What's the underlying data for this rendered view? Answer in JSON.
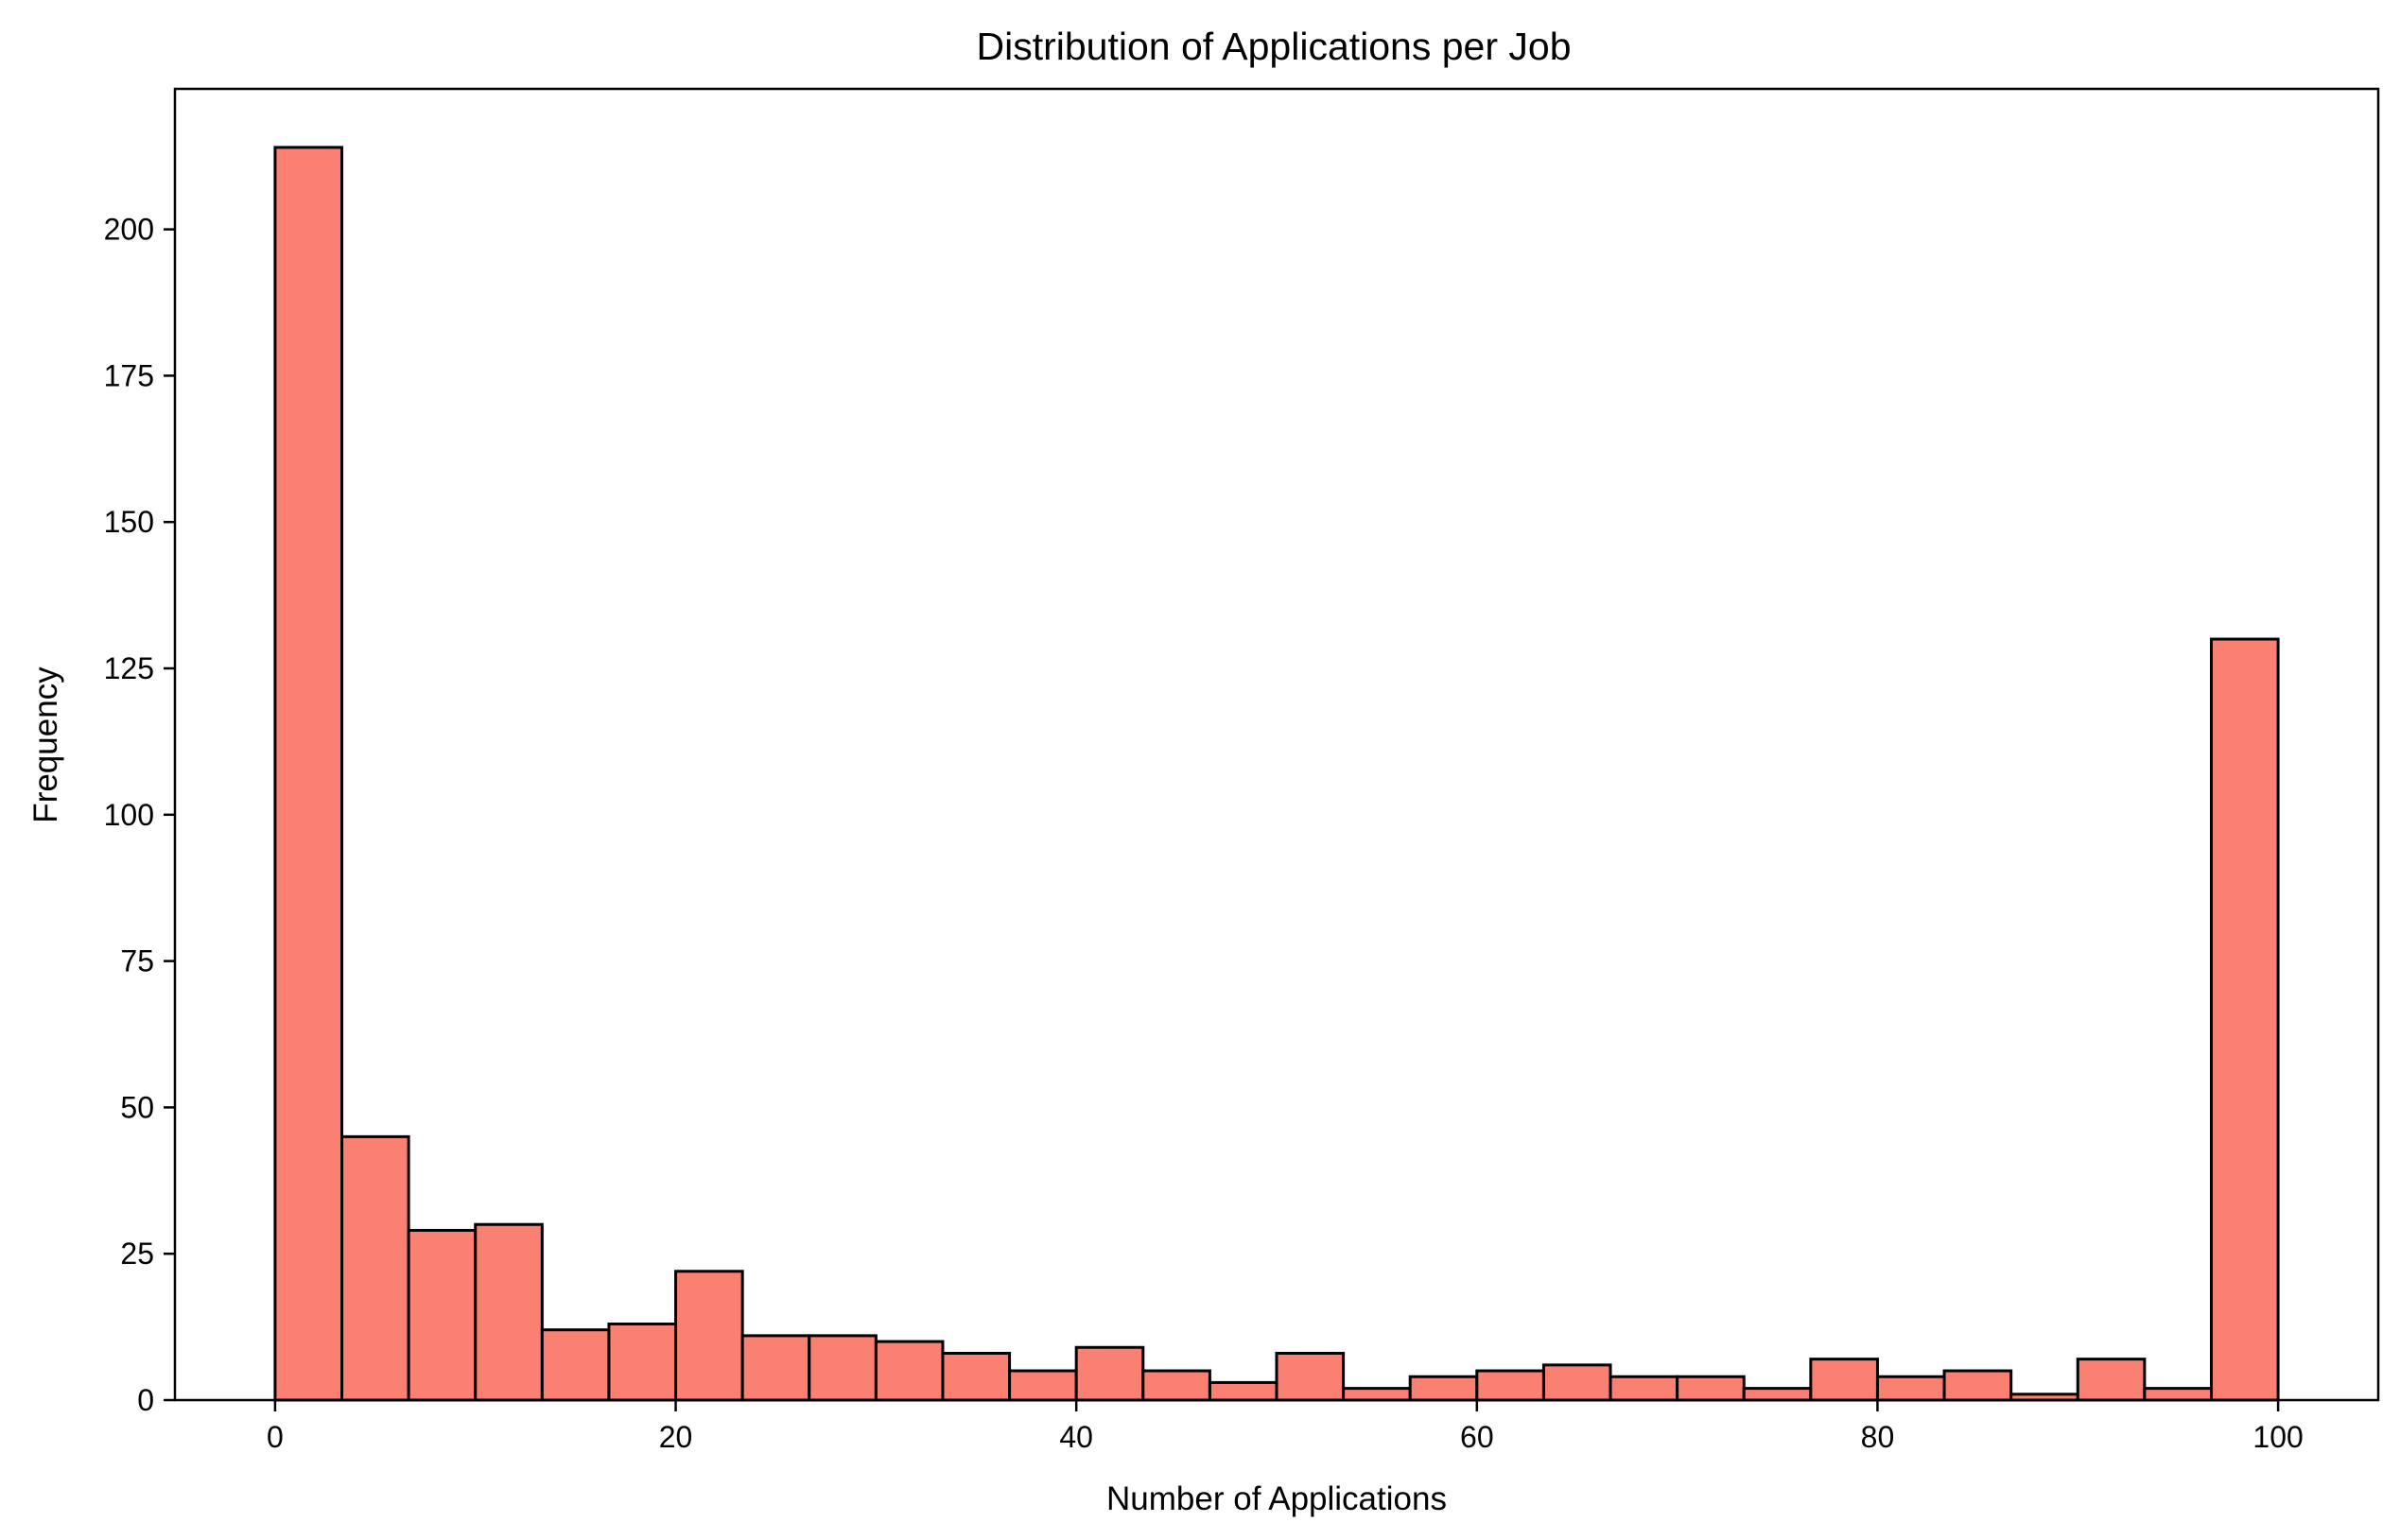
{
  "chart_data": {
    "type": "bar",
    "title": "Distribution of Applications per Job",
    "xlabel": "Number of Applications",
    "ylabel": "Frequency",
    "bar_color": "#fa8072",
    "edge_color": "#000000",
    "bins": {
      "start": 0,
      "end": 100,
      "count": 30
    },
    "values": [
      214,
      45,
      29,
      30,
      12,
      13,
      22,
      11,
      11,
      10,
      8,
      5,
      9,
      5,
      3,
      8,
      2,
      4,
      5,
      6,
      4,
      4,
      2,
      7,
      4,
      5,
      1,
      7,
      2,
      130
    ],
    "xlim": [
      -5,
      105
    ],
    "ylim": [
      0,
      224
    ],
    "xticks": [
      0,
      20,
      40,
      60,
      80,
      100
    ],
    "xtick_labels": [
      "0",
      "20",
      "40",
      "60",
      "80",
      "100"
    ],
    "yticks": [
      0,
      25,
      50,
      75,
      100,
      125,
      150,
      175,
      200
    ],
    "ytick_labels": [
      "0",
      "25",
      "50",
      "75",
      "100",
      "125",
      "150",
      "175",
      "200"
    ],
    "grid": false,
    "legend": "none"
  }
}
